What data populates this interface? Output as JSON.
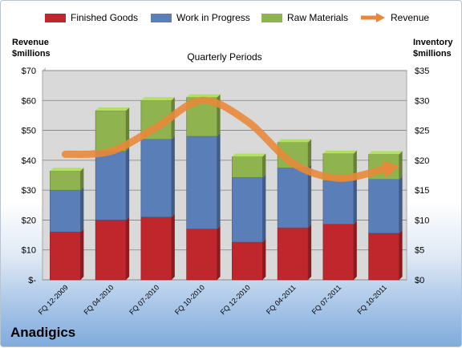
{
  "brand": "Anadigics",
  "axes": {
    "left_title_line1": "Revenue",
    "left_title_line2": "$millions",
    "right_title_line1": "Inventory",
    "right_title_line2": "$millions",
    "x_title": "Quarterly Periods"
  },
  "legend": [
    {
      "label": "Finished Goods",
      "color": "#c0272d"
    },
    {
      "label": "Work in Progress",
      "color": "#5a7fb8"
    },
    {
      "label": "Raw Materials",
      "color": "#8fb34e"
    },
    {
      "label": "Revenue",
      "color": "#e8883a"
    }
  ],
  "chart_data": {
    "type": "bar",
    "stacked": true,
    "title": "Quarterly Periods",
    "categories": [
      "FQ 12-2009",
      "FQ 04-2010",
      "FQ 07-2010",
      "FQ 10-2010",
      "FQ 12-2010",
      "FQ 04-2011",
      "FQ 07-2011",
      "FQ 10-2011"
    ],
    "series": [
      {
        "name": "Finished Goods",
        "axis": "right",
        "color": "#c0272d",
        "values": [
          8.0,
          10.0,
          10.5,
          8.5,
          6.3,
          8.7,
          9.3,
          7.8
        ]
      },
      {
        "name": "Work in Progress",
        "axis": "right",
        "color": "#5a7fb8",
        "values": [
          7.0,
          11.5,
          13.0,
          15.5,
          10.8,
          10.0,
          7.3,
          9.0
        ]
      },
      {
        "name": "Raw Materials",
        "axis": "right",
        "color": "#8fb34e",
        "values": [
          3.2,
          6.8,
          6.5,
          6.5,
          3.5,
          4.3,
          4.5,
          4.2
        ]
      },
      {
        "name": "Revenue",
        "axis": "left",
        "type": "line",
        "color": "#e8883a",
        "values": [
          42,
          43,
          51,
          60,
          53,
          39,
          34,
          37
        ]
      }
    ],
    "left_axis": {
      "ylim": [
        0,
        70
      ],
      "ticks": [
        "$-",
        "$10",
        "$20",
        "$30",
        "$40",
        "$50",
        "$60",
        "$70"
      ]
    },
    "right_axis": {
      "ylim": [
        0,
        35
      ],
      "ticks": [
        "$0",
        "$5",
        "$10",
        "$15",
        "$20",
        "$25",
        "$30",
        "$35"
      ]
    },
    "grid": true,
    "legend_position": "top"
  }
}
